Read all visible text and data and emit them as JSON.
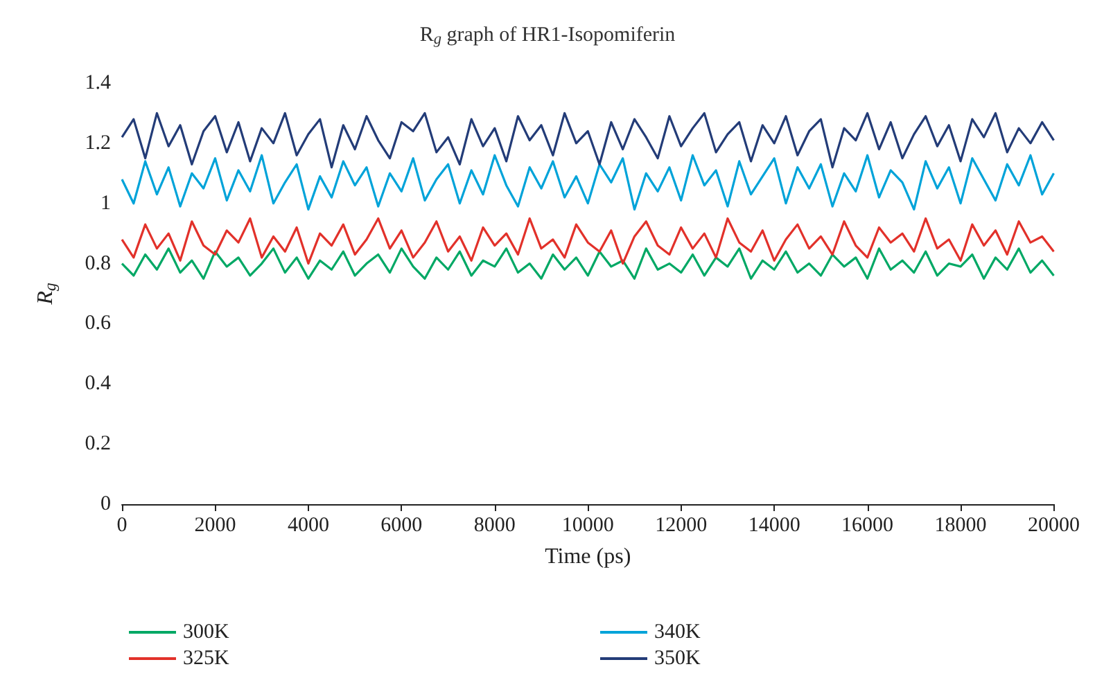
{
  "chart_data": {
    "type": "line",
    "title": "R$_{g}$ graph of HR1-Isopomiferin",
    "xlabel": "Time (ps)",
    "ylabel": "R$_{g}$",
    "x": [
      0,
      250,
      500,
      750,
      1000,
      1250,
      1500,
      1750,
      2000,
      2250,
      2500,
      2750,
      3000,
      3250,
      3500,
      3750,
      4000,
      4250,
      4500,
      4750,
      5000,
      5250,
      5500,
      5750,
      6000,
      6250,
      6500,
      6750,
      7000,
      7250,
      7500,
      7750,
      8000,
      8250,
      8500,
      8750,
      9000,
      9250,
      9500,
      9750,
      10000,
      10250,
      10500,
      10750,
      11000,
      11250,
      11500,
      11750,
      12000,
      12250,
      12500,
      12750,
      13000,
      13250,
      13500,
      13750,
      14000,
      14250,
      14500,
      14750,
      15000,
      15250,
      15500,
      15750,
      16000,
      16250,
      16500,
      16750,
      17000,
      17250,
      17500,
      17750,
      18000,
      18250,
      18500,
      18750,
      19000,
      19250,
      19500,
      19750,
      20000
    ],
    "series": [
      {
        "name": "300K",
        "color": "#00a865",
        "values": [
          0.8,
          0.76,
          0.83,
          0.78,
          0.85,
          0.77,
          0.81,
          0.75,
          0.84,
          0.79,
          0.82,
          0.76,
          0.8,
          0.85,
          0.77,
          0.82,
          0.75,
          0.81,
          0.78,
          0.84,
          0.76,
          0.8,
          0.83,
          0.77,
          0.85,
          0.79,
          0.75,
          0.82,
          0.78,
          0.84,
          0.76,
          0.81,
          0.79,
          0.85,
          0.77,
          0.8,
          0.75,
          0.83,
          0.78,
          0.82,
          0.76,
          0.84,
          0.79,
          0.81,
          0.75,
          0.85,
          0.78,
          0.8,
          0.77,
          0.83,
          0.76,
          0.82,
          0.79,
          0.85,
          0.75,
          0.81,
          0.78,
          0.84,
          0.77,
          0.8,
          0.76,
          0.83,
          0.79,
          0.82,
          0.75,
          0.85,
          0.78,
          0.81,
          0.77,
          0.84,
          0.76,
          0.8,
          0.79,
          0.83,
          0.75,
          0.82,
          0.78,
          0.85,
          0.77,
          0.81,
          0.76
        ]
      },
      {
        "name": "325K",
        "color": "#e2312a",
        "values": [
          0.88,
          0.82,
          0.93,
          0.85,
          0.9,
          0.81,
          0.94,
          0.86,
          0.83,
          0.91,
          0.87,
          0.95,
          0.82,
          0.89,
          0.84,
          0.92,
          0.8,
          0.9,
          0.86,
          0.93,
          0.83,
          0.88,
          0.95,
          0.85,
          0.91,
          0.82,
          0.87,
          0.94,
          0.84,
          0.89,
          0.81,
          0.92,
          0.86,
          0.9,
          0.83,
          0.95,
          0.85,
          0.88,
          0.82,
          0.93,
          0.87,
          0.84,
          0.91,
          0.8,
          0.89,
          0.94,
          0.86,
          0.83,
          0.92,
          0.85,
          0.9,
          0.82,
          0.95,
          0.87,
          0.84,
          0.91,
          0.81,
          0.88,
          0.93,
          0.85,
          0.89,
          0.83,
          0.94,
          0.86,
          0.82,
          0.92,
          0.87,
          0.9,
          0.84,
          0.95,
          0.85,
          0.88,
          0.81,
          0.93,
          0.86,
          0.91,
          0.83,
          0.94,
          0.87,
          0.89,
          0.84
        ]
      },
      {
        "name": "340K",
        "color": "#00a3d9",
        "values": [
          1.08,
          1.0,
          1.14,
          1.03,
          1.12,
          0.99,
          1.1,
          1.05,
          1.15,
          1.01,
          1.11,
          1.04,
          1.16,
          1.0,
          1.07,
          1.13,
          0.98,
          1.09,
          1.02,
          1.14,
          1.06,
          1.12,
          0.99,
          1.1,
          1.04,
          1.15,
          1.01,
          1.08,
          1.13,
          1.0,
          1.11,
          1.03,
          1.16,
          1.06,
          0.99,
          1.12,
          1.05,
          1.14,
          1.02,
          1.09,
          1.0,
          1.13,
          1.07,
          1.15,
          0.98,
          1.1,
          1.04,
          1.12,
          1.01,
          1.16,
          1.06,
          1.11,
          0.99,
          1.14,
          1.03,
          1.09,
          1.15,
          1.0,
          1.12,
          1.05,
          1.13,
          0.99,
          1.1,
          1.04,
          1.16,
          1.02,
          1.11,
          1.07,
          0.98,
          1.14,
          1.05,
          1.12,
          1.0,
          1.15,
          1.08,
          1.01,
          1.13,
          1.06,
          1.16,
          1.03,
          1.1
        ]
      },
      {
        "name": "350K",
        "color": "#233c78",
        "values": [
          1.22,
          1.28,
          1.15,
          1.3,
          1.19,
          1.26,
          1.13,
          1.24,
          1.29,
          1.17,
          1.27,
          1.14,
          1.25,
          1.2,
          1.3,
          1.16,
          1.23,
          1.28,
          1.12,
          1.26,
          1.18,
          1.29,
          1.21,
          1.15,
          1.27,
          1.24,
          1.3,
          1.17,
          1.22,
          1.13,
          1.28,
          1.19,
          1.25,
          1.14,
          1.29,
          1.21,
          1.26,
          1.16,
          1.3,
          1.2,
          1.24,
          1.13,
          1.27,
          1.18,
          1.28,
          1.22,
          1.15,
          1.29,
          1.19,
          1.25,
          1.3,
          1.17,
          1.23,
          1.27,
          1.14,
          1.26,
          1.2,
          1.29,
          1.16,
          1.24,
          1.28,
          1.12,
          1.25,
          1.21,
          1.3,
          1.18,
          1.27,
          1.15,
          1.23,
          1.29,
          1.19,
          1.26,
          1.14,
          1.28,
          1.22,
          1.3,
          1.17,
          1.25,
          1.2,
          1.27,
          1.21
        ]
      }
    ],
    "xlim": [
      0,
      20000
    ],
    "xticks": [
      0,
      2000,
      4000,
      6000,
      8000,
      10000,
      12000,
      14000,
      16000,
      18000,
      20000
    ],
    "ylim": [
      0,
      1.4
    ],
    "yticks": [
      0,
      0.2,
      0.4,
      0.6,
      0.8,
      1,
      1.2,
      1.4
    ],
    "grid": false,
    "legend": "bottom",
    "marker": "none",
    "line_style": "solid"
  }
}
